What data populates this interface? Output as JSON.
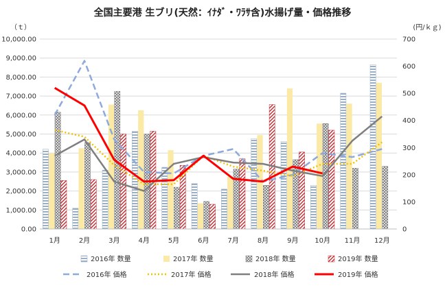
{
  "chart_data": {
    "type": "bar",
    "title": "全国主要港 生ブリ(天然：ｲﾅﾀﾞ・ﾜﾗｻ含)水揚げ量・価格推移",
    "ylabel": "（ｔ）",
    "y2label": "(円/ｋｇ)",
    "categories": [
      "1月",
      "2月",
      "3月",
      "4月",
      "5月",
      "6月",
      "7月",
      "8月",
      "9月",
      "10月",
      "11月",
      "12月"
    ],
    "ylim": [
      0,
      10000
    ],
    "y2lim": [
      0,
      700
    ],
    "yticks": [
      "0.00",
      "1,000.00",
      "2,000.00",
      "3,000.00",
      "4,000.00",
      "5,000.00",
      "6,000.00",
      "7,000.00",
      "8,000.00",
      "9,000.00",
      "10,000.00"
    ],
    "y2ticks": [
      "0",
      "100",
      "200",
      "300",
      "400",
      "500",
      "600",
      "700"
    ],
    "grid": true,
    "legend_position": "bottom",
    "bar_series": [
      {
        "name": "2016年 数量",
        "color": "#9aaec4",
        "pattern": "hstripe",
        "values": [
          4200,
          1100,
          3100,
          5150,
          3250,
          2400,
          2100,
          4750,
          4600,
          2300,
          7150,
          8650
        ]
      },
      {
        "name": "2017年 数量",
        "color": "#fbe9a6",
        "pattern": "solid",
        "values": [
          4000,
          4250,
          6550,
          6250,
          4150,
          1350,
          2750,
          4950,
          7400,
          5550,
          6600,
          7700
        ]
      },
      {
        "name": "2018年 数量",
        "color": "#7a7a7a",
        "pattern": "cross",
        "values": [
          6150,
          4550,
          7250,
          5000,
          2200,
          1450,
          3150,
          2300,
          3650,
          5550,
          3200,
          3300
        ]
      },
      {
        "name": "2019年 数量",
        "color": "#c0282e",
        "pattern": "diag",
        "values": [
          2550,
          2600,
          5000,
          5150,
          3350,
          1300,
          3700,
          6550,
          4050,
          5200,
          null,
          null
        ]
      }
    ],
    "line_series": [
      {
        "name": "2016年 価格",
        "color": "#8ea9db",
        "dash": "dash",
        "values": [
          420,
          620,
          330,
          210,
          205,
          270,
          295,
          175,
          200,
          280,
          265,
          295
        ]
      },
      {
        "name": "2017年 価格",
        "color": "#f2c200",
        "dash": "dot",
        "values": [
          365,
          340,
          235,
          165,
          165,
          270,
          230,
          215,
          195,
          240,
          240,
          320
        ]
      },
      {
        "name": "2018年 価格",
        "color": "#7f7f7f",
        "dash": "solid",
        "values": [
          270,
          330,
          175,
          140,
          240,
          265,
          245,
          240,
          215,
          195,
          325,
          415
        ]
      },
      {
        "name": "2019年 価格",
        "color": "#ff0000",
        "dash": "solid",
        "values": [
          520,
          455,
          255,
          175,
          180,
          270,
          185,
          175,
          230,
          205,
          null,
          null
        ]
      }
    ]
  }
}
